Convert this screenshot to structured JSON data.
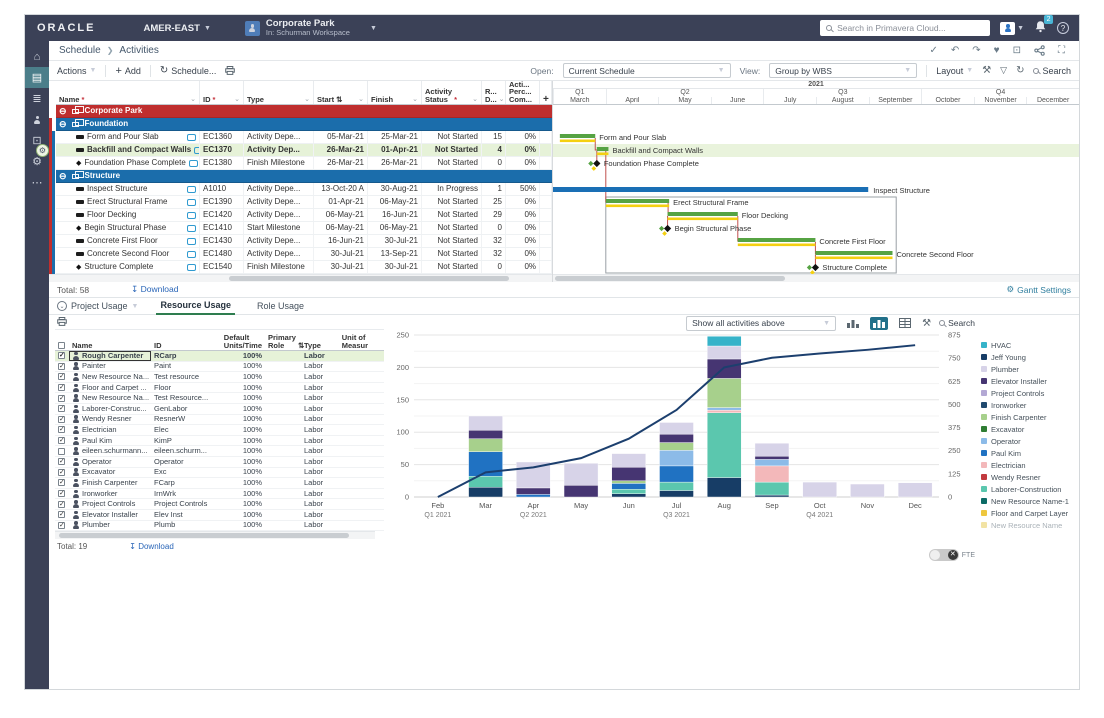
{
  "topbar": {
    "brand": "ORACLE",
    "region": "AMER-EAST",
    "project_name": "Corporate Park",
    "project_context": "In: Schurman Workspace",
    "search_placeholder": "Search in Primavera Cloud...",
    "notification_count": "2"
  },
  "breadcrumb": {
    "section": "Schedule",
    "page": "Activities"
  },
  "toolbar": {
    "actions": "Actions",
    "add": "Add",
    "schedule": "Schedule...",
    "open_label": "Open:",
    "open_value": "Current Schedule",
    "view_label": "View:",
    "view_value": "Group by WBS",
    "layout": "Layout",
    "search": "Search"
  },
  "grid": {
    "columns": [
      {
        "label": "Name",
        "required": true
      },
      {
        "label": "ID",
        "required": true
      },
      {
        "label": "Type"
      },
      {
        "label": "Start",
        "sorted": true
      },
      {
        "label": "Finish"
      },
      {
        "label": "Activity\nStatus",
        "required": true
      },
      {
        "label": "R...\nD..."
      },
      {
        "label": "Acti...\nPerc...\nCom..."
      }
    ],
    "add_column": "+",
    "rows": [
      {
        "kind": "project",
        "name": "Corporate Park"
      },
      {
        "kind": "wbs",
        "name": "Foundation"
      },
      {
        "kind": "activity",
        "icon": "task",
        "name": "Form and Pour Slab",
        "id": "EC1360",
        "type": "Activity Depe...",
        "start": "05-Mar-21",
        "finish": "25-Mar-21",
        "status": "Not Started",
        "remaining": "15",
        "percent": "0%"
      },
      {
        "kind": "activity",
        "icon": "task",
        "selected": true,
        "name": "Backfill and Compact Walls",
        "id": "EC1370",
        "type": "Activity Dep...",
        "start": "26-Mar-21",
        "finish": "01-Apr-21",
        "status": "Not Started",
        "remaining": "4",
        "percent": "0%"
      },
      {
        "kind": "activity",
        "icon": "milestone",
        "name": "Foundation Phase Complete",
        "id": "EC1380",
        "type": "Finish Milestone",
        "start": "26-Mar-21",
        "finish": "26-Mar-21",
        "status": "Not Started",
        "remaining": "0",
        "percent": "0%"
      },
      {
        "kind": "wbs",
        "name": "Structure"
      },
      {
        "kind": "activity",
        "icon": "task",
        "name": "Inspect Structure",
        "id": "A1010",
        "type": "Activity Depe...",
        "start": "13-Oct-20 A",
        "finish": "30-Aug-21",
        "status": "In Progress",
        "remaining": "1",
        "percent": "50%"
      },
      {
        "kind": "activity",
        "icon": "task",
        "name": "Erect Structural Frame",
        "id": "EC1390",
        "type": "Activity Depe...",
        "start": "01-Apr-21",
        "finish": "06-May-21",
        "status": "Not Started",
        "remaining": "25",
        "percent": "0%"
      },
      {
        "kind": "activity",
        "icon": "task",
        "name": "Floor Decking",
        "id": "EC1420",
        "type": "Activity Depe...",
        "start": "06-May-21",
        "finish": "16-Jun-21",
        "status": "Not Started",
        "remaining": "29",
        "percent": "0%"
      },
      {
        "kind": "activity",
        "icon": "milestone",
        "name": "Begin Structural Phase",
        "id": "EC1410",
        "type": "Start Milestone",
        "start": "06-May-21",
        "finish": "06-May-21",
        "status": "Not Started",
        "remaining": "0",
        "percent": "0%"
      },
      {
        "kind": "activity",
        "icon": "task",
        "name": "Concrete First Floor",
        "id": "EC1430",
        "type": "Activity Depe...",
        "start": "16-Jun-21",
        "finish": "30-Jul-21",
        "status": "Not Started",
        "remaining": "32",
        "percent": "0%"
      },
      {
        "kind": "activity",
        "icon": "task",
        "name": "Concrete Second Floor",
        "id": "EC1480",
        "type": "Activity Depe...",
        "start": "30-Jul-21",
        "finish": "13-Sep-21",
        "status": "Not Started",
        "remaining": "32",
        "percent": "0%"
      },
      {
        "kind": "activity",
        "icon": "milestone",
        "name": "Structure Complete",
        "id": "EC1540",
        "type": "Finish Milestone",
        "start": "30-Jul-21",
        "finish": "30-Jul-21",
        "status": "Not Started",
        "remaining": "0",
        "percent": "0%"
      }
    ],
    "footer": {
      "total_label": "Total:",
      "total_value": "58",
      "download": "Download"
    }
  },
  "gantt": {
    "year": "2021",
    "quarters": [
      {
        "label": "Q1",
        "months": [
          "March"
        ]
      },
      {
        "label": "Q2",
        "months": [
          "April",
          "May",
          "June"
        ]
      },
      {
        "label": "Q3",
        "months": [
          "July",
          "August",
          "September"
        ]
      },
      {
        "label": "Q4",
        "months": [
          "October",
          "November",
          "December"
        ]
      }
    ],
    "settings_label": "Gantt Settings",
    "bars": [
      {
        "row": 2,
        "type": "task",
        "start": 0.13,
        "end": 0.8,
        "label": "Form and Pour Slab"
      },
      {
        "row": 3,
        "type": "task",
        "start": 0.83,
        "end": 1.05,
        "label": "Backfill and Compact Walls"
      },
      {
        "row": 4,
        "type": "milestone",
        "at": 0.83,
        "label": "Foundation Phase Complete"
      },
      {
        "row": 6,
        "type": "progress",
        "start": 0,
        "end": 5.97,
        "label": "Inspect Structure"
      },
      {
        "row": 7,
        "type": "task",
        "start": 1.0,
        "end": 2.2,
        "label": "Erect Structural Frame"
      },
      {
        "row": 8,
        "type": "task",
        "start": 2.17,
        "end": 3.5,
        "label": "Floor Decking"
      },
      {
        "row": 9,
        "type": "milestone",
        "at": 2.17,
        "label": "Begin Structural Phase"
      },
      {
        "row": 10,
        "type": "task",
        "start": 3.5,
        "end": 4.97,
        "label": "Concrete First Floor"
      },
      {
        "row": 11,
        "type": "task",
        "start": 4.97,
        "end": 6.43,
        "label": "Concrete Second Floor"
      },
      {
        "row": 12,
        "type": "milestone",
        "at": 4.97,
        "label": "Structure Complete"
      }
    ],
    "summary_box": {
      "start": 1.0,
      "end": 6.5,
      "from_row": 7,
      "to_row": 12
    },
    "connectors": [
      [
        0.8,
        2,
        3
      ],
      [
        0.83,
        3,
        4
      ],
      [
        1.0,
        3,
        7
      ],
      [
        2.18,
        7,
        8
      ],
      [
        2.17,
        8,
        9
      ],
      [
        3.5,
        8,
        10
      ],
      [
        4.97,
        10,
        11
      ],
      [
        4.97,
        11,
        12
      ]
    ],
    "selected_row": 3
  },
  "bottom": {
    "selector_label": "Project Usage",
    "tabs": [
      {
        "label": "Resource Usage",
        "active": true
      },
      {
        "label": "Role Usage",
        "active": false
      }
    ],
    "resources": {
      "columns": [
        "Name",
        "ID",
        "Default\nUnits/Time",
        "Primary\nRole",
        "Type",
        "Unit of\nMeasur"
      ],
      "rows": [
        {
          "name": "Rough Carpenter",
          "id": "RCarp",
          "units": "100%",
          "type": "Labor",
          "checked": true,
          "selected": true
        },
        {
          "name": "Painter",
          "id": "Paint",
          "units": "100%",
          "type": "Labor",
          "checked": true
        },
        {
          "name": "New Resource Na...",
          "id": "Test resource",
          "units": "100%",
          "type": "Labor",
          "checked": true
        },
        {
          "name": "Floor and Carpet ...",
          "id": "Floor",
          "units": "100%",
          "type": "Labor",
          "checked": true
        },
        {
          "name": "New Resource Na...",
          "id": "Test Resource...",
          "units": "100%",
          "type": "Labor",
          "checked": true
        },
        {
          "name": "Laborer-Construc...",
          "id": "GenLabor",
          "units": "100%",
          "type": "Labor",
          "checked": true
        },
        {
          "name": "Wendy Resner",
          "id": "ResnerW",
          "units": "100%",
          "type": "Labor",
          "checked": true
        },
        {
          "name": "Electrician",
          "id": "Elec",
          "units": "100%",
          "type": "Labor",
          "checked": true
        },
        {
          "name": "Paul Kim",
          "id": "KimP",
          "units": "100%",
          "type": "Labor",
          "checked": true
        },
        {
          "name": "eileen.schurmann...",
          "id": "eileen.schurm...",
          "units": "100%",
          "type": "Labor",
          "checked": false
        },
        {
          "name": "Operator",
          "id": "Operator",
          "units": "100%",
          "type": "Labor",
          "checked": true
        },
        {
          "name": "Excavator",
          "id": "Exc",
          "units": "100%",
          "type": "Labor",
          "checked": true
        },
        {
          "name": "Finish Carpenter",
          "id": "FCarp",
          "units": "100%",
          "type": "Labor",
          "checked": true
        },
        {
          "name": "Ironworker",
          "id": "IrnWrk",
          "units": "100%",
          "type": "Labor",
          "checked": true
        },
        {
          "name": "Project Controls",
          "id": "Project Controls",
          "units": "100%",
          "type": "Labor",
          "checked": true
        },
        {
          "name": "Elevator Installer",
          "id": "Elev Inst",
          "units": "100%",
          "type": "Labor",
          "checked": true
        },
        {
          "name": "Plumber",
          "id": "Plumb",
          "units": "100%",
          "type": "Labor",
          "checked": true
        }
      ],
      "footer": {
        "total_label": "Total:",
        "total_value": "19",
        "download": "Download"
      }
    },
    "chart_toolbar": {
      "filter_value": "Show all activities above",
      "search_placeholder": "Search"
    }
  },
  "chart_data": {
    "type": "stacked-bar-with-line",
    "categories": [
      "Feb",
      "Mar",
      "Apr",
      "May",
      "Jun",
      "Jul",
      "Aug",
      "Sep",
      "Oct",
      "Nov",
      "Dec"
    ],
    "quarter_labels": [
      [
        "Feb",
        "Q1 2021"
      ],
      [
        "Apr",
        "Q2 2021"
      ],
      [
        "Jul",
        "Q3 2021"
      ],
      [
        "Oct",
        "Q4 2021"
      ]
    ],
    "left_axis": {
      "min": 0,
      "max": 250,
      "step": 50,
      "minor_step": 25
    },
    "right_axis": {
      "min": 0,
      "max": 875,
      "step": 125
    },
    "series": [
      {
        "name": "Jeff Young",
        "color": "#173d66",
        "values": [
          0,
          15,
          0,
          0,
          5,
          10,
          30,
          3,
          0,
          0,
          0
        ]
      },
      {
        "name": "Laborer-Construction",
        "color": "#5bc7ae",
        "values": [
          0,
          17,
          0,
          0,
          7,
          13,
          100,
          20,
          0,
          0,
          0
        ]
      },
      {
        "name": "Electrician",
        "color": "#f3b8ba",
        "values": [
          0,
          0,
          0,
          0,
          0,
          0,
          4,
          25,
          0,
          0,
          0
        ]
      },
      {
        "name": "Paul Kim",
        "color": "#2072c2",
        "values": [
          0,
          38,
          4,
          0,
          9,
          25,
          0,
          0,
          0,
          0,
          0
        ]
      },
      {
        "name": "Operator",
        "color": "#8cbbe8",
        "values": [
          0,
          0,
          0,
          0,
          0,
          24,
          4,
          10,
          0,
          0,
          0
        ]
      },
      {
        "name": "Finish Carpenter",
        "color": "#a7d08c",
        "values": [
          0,
          20,
          0,
          0,
          4,
          12,
          45,
          0,
          0,
          0,
          0
        ]
      },
      {
        "name": "Elevator Installer",
        "color": "#463572",
        "values": [
          0,
          13,
          10,
          18,
          21,
          13,
          30,
          5,
          0,
          0,
          0
        ]
      },
      {
        "name": "Plumber",
        "color": "#d7d3e8",
        "values": [
          0,
          22,
          40,
          34,
          21,
          18,
          20,
          20,
          23,
          20,
          22
        ]
      },
      {
        "name": "HVAC",
        "color": "#36b3c9",
        "values": [
          0,
          0,
          0,
          0,
          0,
          0,
          15,
          0,
          0,
          0,
          0
        ]
      }
    ],
    "line": {
      "name": "Cumulative",
      "color": "#1c3f6e",
      "values": [
        0,
        133,
        160,
        210,
        315,
        470,
        700,
        752,
        775,
        795,
        820
      ]
    },
    "legend": [
      {
        "name": "HVAC",
        "color": "#36b3c9"
      },
      {
        "name": "Jeff Young",
        "color": "#173d66"
      },
      {
        "name": "Plumber",
        "color": "#d7d3e8"
      },
      {
        "name": "Elevator Installer",
        "color": "#463572"
      },
      {
        "name": "Project Controls",
        "color": "#b3a8d4"
      },
      {
        "name": "Ironworker",
        "color": "#20496e"
      },
      {
        "name": "Finish Carpenter",
        "color": "#a7d08c"
      },
      {
        "name": "Excavator",
        "color": "#2f7d33"
      },
      {
        "name": "Operator",
        "color": "#8cbbe8"
      },
      {
        "name": "Paul Kim",
        "color": "#2072c2"
      },
      {
        "name": "Electrician",
        "color": "#f3b8ba"
      },
      {
        "name": "Wendy Resner",
        "color": "#c23a3f"
      },
      {
        "name": "Laborer-Construction",
        "color": "#5bc7ae"
      },
      {
        "name": "New Resource Name-1",
        "color": "#0c6b66"
      },
      {
        "name": "Floor and Carpet Layer",
        "color": "#eec73e"
      },
      {
        "name": "New Resource Name",
        "color": "#f2e3a4",
        "muted": true
      }
    ],
    "fte_label": "FTE"
  }
}
